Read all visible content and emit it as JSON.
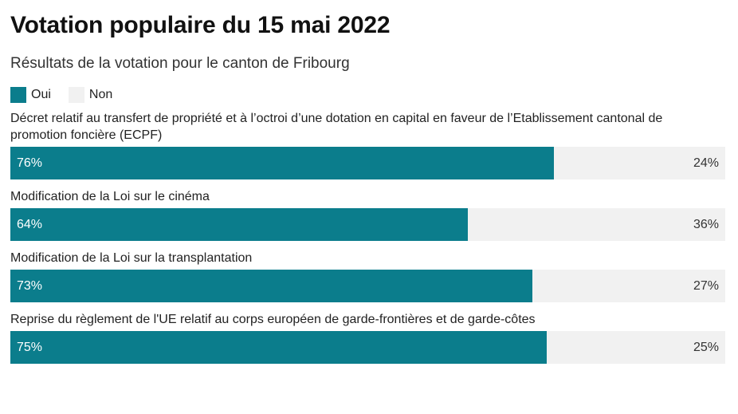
{
  "title": "Votation populaire du 15 mai 2022",
  "subtitle": "Résultats de la votation pour le canton de Fribourg",
  "colors": {
    "oui": "#0b7d8c",
    "non": "#f1f1f1"
  },
  "chart_data": {
    "type": "bar",
    "orientation": "horizontal-stacked-100",
    "title": "Votation populaire du 15 mai 2022",
    "subtitle": "Résultats de la votation pour le canton de Fribourg",
    "legend": {
      "placement": "top-left",
      "entries": [
        {
          "name": "Oui",
          "color": "#0b7d8c"
        },
        {
          "name": "Non",
          "color": "#f1f1f1"
        }
      ]
    },
    "categories": [
      "Décret relatif au transfert de propriété et à l’octroi d’une dotation en capital en faveur de l’Etablissement cantonal de promotion foncière (ECPF)",
      "Modification de la Loi sur le cinéma",
      "Modification de la Loi sur la transplantation",
      "Reprise du règlement de l'UE relatif au corps européen de garde-frontières et de garde-côtes"
    ],
    "series": [
      {
        "name": "Oui",
        "values": [
          76,
          64,
          73,
          75
        ],
        "labels": [
          "76%",
          "64%",
          "73%",
          "75%"
        ]
      },
      {
        "name": "Non",
        "values": [
          24,
          36,
          27,
          25
        ],
        "labels": [
          "24%",
          "36%",
          "27%",
          "25%"
        ]
      }
    ],
    "xlim": [
      0,
      100
    ],
    "grid": false
  }
}
